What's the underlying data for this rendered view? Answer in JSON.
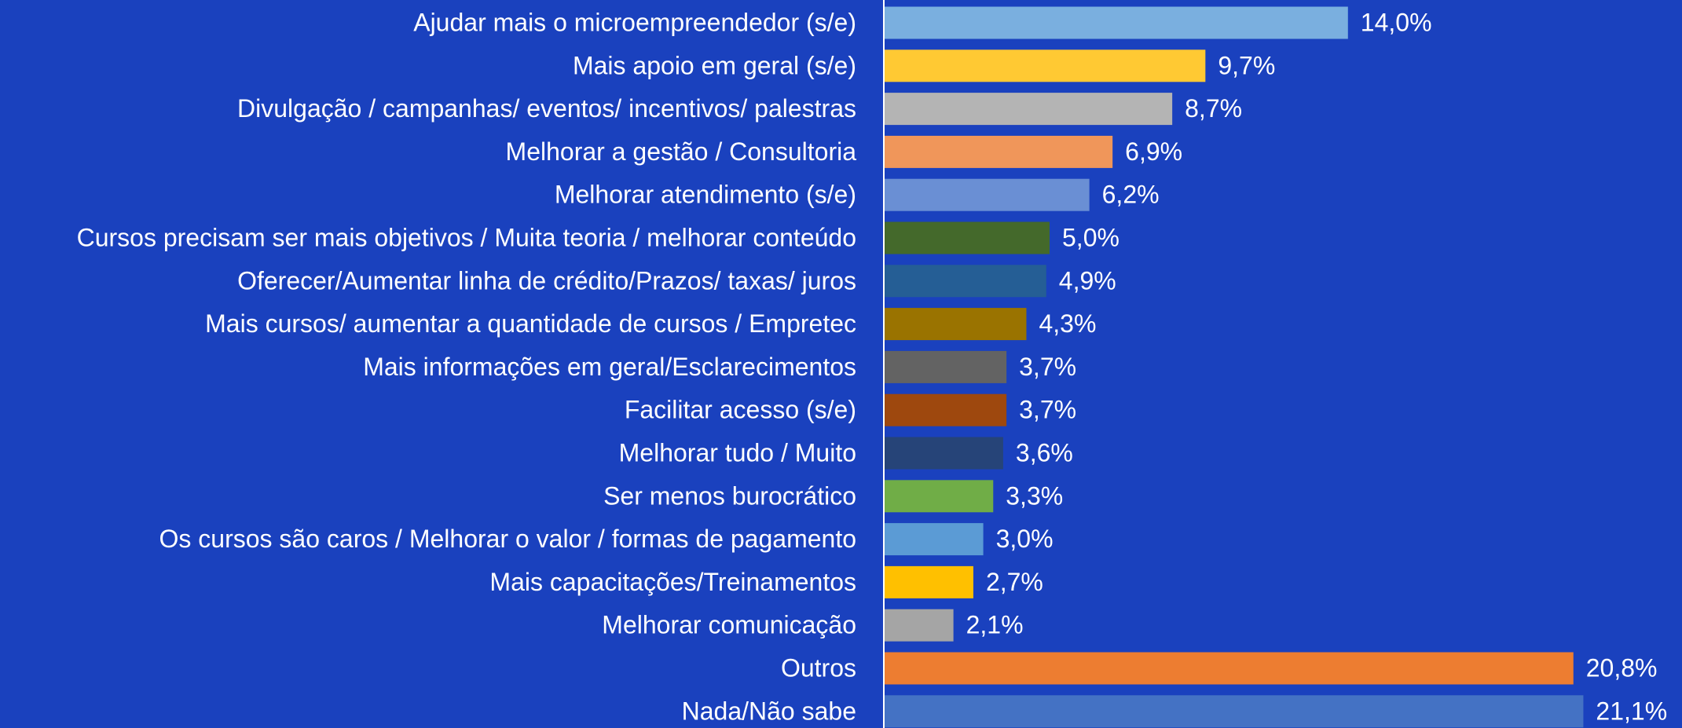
{
  "chart_data": {
    "type": "bar",
    "orientation": "horizontal",
    "categories": [
      "Ajudar mais o microempreendedor (s/e)",
      "Mais apoio em geral (s/e)",
      "Divulgação / campanhas/ eventos/ incentivos/ palestras",
      "Melhorar a gestão / Consultoria",
      "Melhorar atendimento (s/e)",
      "Cursos precisam ser mais objetivos / Muita teoria / melhorar conteúdo",
      "Oferecer/Aumentar linha de crédito/Prazos/ taxas/ juros",
      "Mais cursos/ aumentar a quantidade de cursos / Empretec",
      "Mais informações em geral/Esclarecimentos",
      "Facilitar acesso (s/e)",
      "Melhorar tudo / Muito",
      "Ser menos burocrático",
      "Os cursos são caros / Melhorar o valor / formas de pagamento",
      "Mais capacitações/Treinamentos",
      "Melhorar comunicação",
      "Outros",
      "Nada/Não sabe"
    ],
    "values": [
      14.0,
      9.7,
      8.7,
      6.9,
      6.2,
      5.0,
      4.9,
      4.3,
      3.7,
      3.7,
      3.6,
      3.3,
      3.0,
      2.7,
      2.1,
      20.8,
      21.1
    ],
    "value_labels": [
      "14,0%",
      "9,7%",
      "8,7%",
      "6,9%",
      "6,2%",
      "5,0%",
      "4,9%",
      "4,3%",
      "3,7%",
      "3,7%",
      "3,6%",
      "3,3%",
      "3,0%",
      "2,7%",
      "2,1%",
      "20,8%",
      "21,1%"
    ],
    "colors": [
      "#7aafdf",
      "#ffc933",
      "#b4b4b4",
      "#f0965a",
      "#6a8fd4",
      "#44692b",
      "#255e95",
      "#9a7300",
      "#636363",
      "#9e480e",
      "#264478",
      "#70ad47",
      "#5b9bd5",
      "#ffc000",
      "#a5a5a5",
      "#ed7d31",
      "#4472c4"
    ]
  }
}
